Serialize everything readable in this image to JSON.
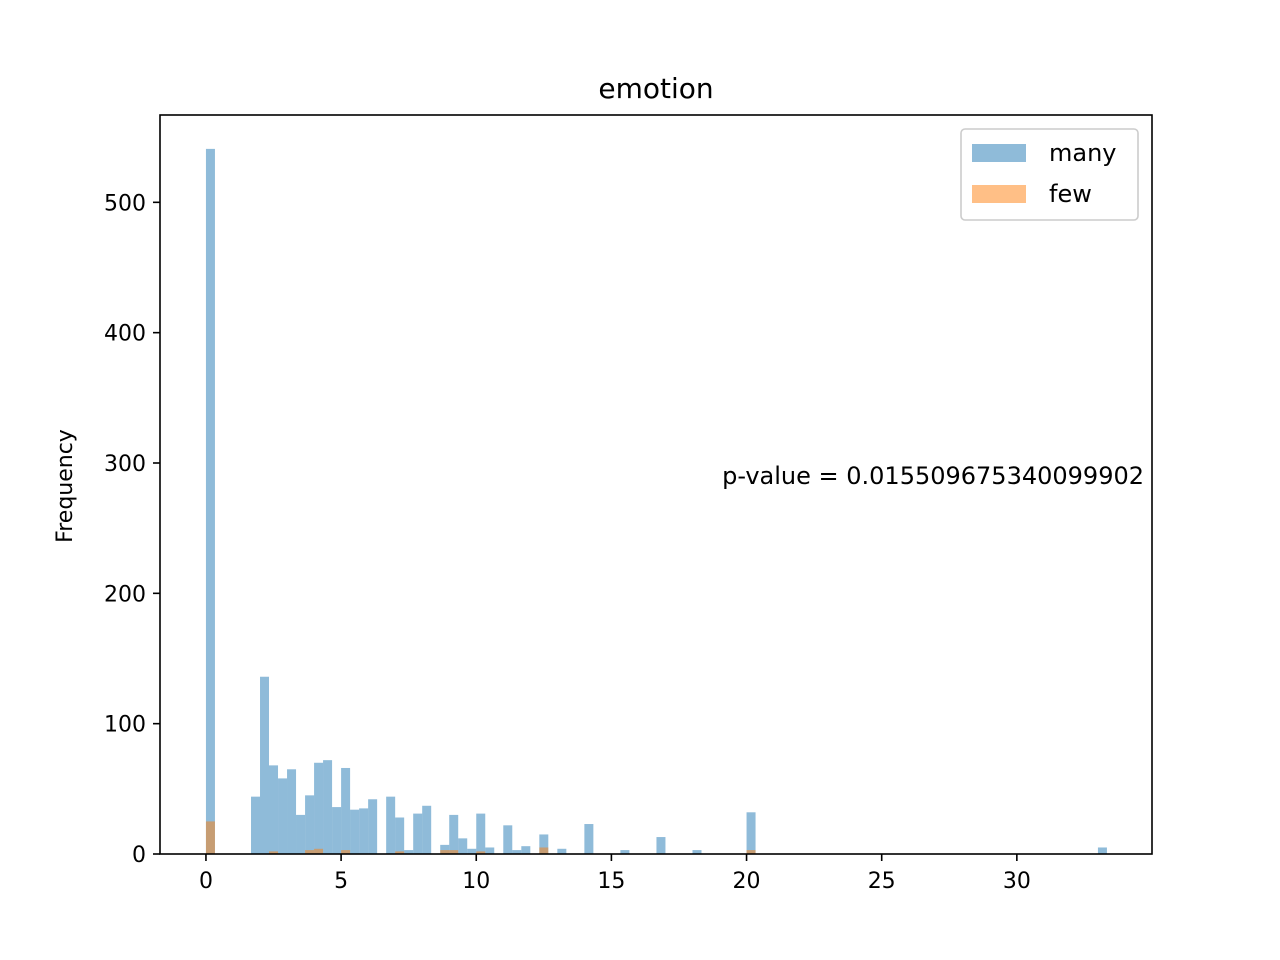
{
  "chart_data": {
    "type": "bar",
    "title": "emotion",
    "xlabel": "",
    "ylabel": "Frequency",
    "xlim": [
      -1.7,
      35.0
    ],
    "ylim": [
      0,
      567
    ],
    "xticks": [
      0,
      5,
      10,
      15,
      20,
      25,
      30
    ],
    "yticks": [
      0,
      100,
      200,
      300,
      400,
      500
    ],
    "bin_width": 0.333,
    "legend_position": "top-right",
    "annotation": "p-value = 0.015509675340099902",
    "series": [
      {
        "name": "many",
        "color": "#1f77b4",
        "opacity": 0.5,
        "bins": [
          [
            0.0,
            541
          ],
          [
            1.667,
            44
          ],
          [
            2.0,
            136
          ],
          [
            2.333,
            68
          ],
          [
            2.667,
            58
          ],
          [
            3.0,
            65
          ],
          [
            3.333,
            30
          ],
          [
            3.667,
            45
          ],
          [
            4.0,
            70
          ],
          [
            4.333,
            72
          ],
          [
            4.667,
            36
          ],
          [
            5.0,
            66
          ],
          [
            5.333,
            34
          ],
          [
            5.667,
            35
          ],
          [
            6.0,
            42
          ],
          [
            6.667,
            44
          ],
          [
            7.0,
            28
          ],
          [
            7.333,
            3
          ],
          [
            7.667,
            31
          ],
          [
            8.0,
            37
          ],
          [
            8.333,
            0
          ],
          [
            8.667,
            7
          ],
          [
            9.0,
            30
          ],
          [
            9.333,
            12
          ],
          [
            9.667,
            4
          ],
          [
            10.0,
            31
          ],
          [
            10.333,
            5
          ],
          [
            11.0,
            22
          ],
          [
            11.333,
            3
          ],
          [
            11.667,
            6
          ],
          [
            12.333,
            15
          ],
          [
            13.0,
            4
          ],
          [
            14.0,
            23
          ],
          [
            15.333,
            3
          ],
          [
            16.667,
            13
          ],
          [
            18.0,
            3
          ],
          [
            20.0,
            32
          ],
          [
            33.0,
            5
          ]
        ]
      },
      {
        "name": "few",
        "color": "#ff7f0e",
        "opacity": 0.5,
        "bins": [
          [
            0.0,
            25
          ],
          [
            2.333,
            2
          ],
          [
            3.667,
            3
          ],
          [
            4.0,
            4
          ],
          [
            5.0,
            3
          ],
          [
            7.0,
            2
          ],
          [
            8.667,
            3
          ],
          [
            9.0,
            3
          ],
          [
            10.0,
            2
          ],
          [
            12.333,
            5
          ],
          [
            20.0,
            3
          ]
        ]
      }
    ]
  }
}
